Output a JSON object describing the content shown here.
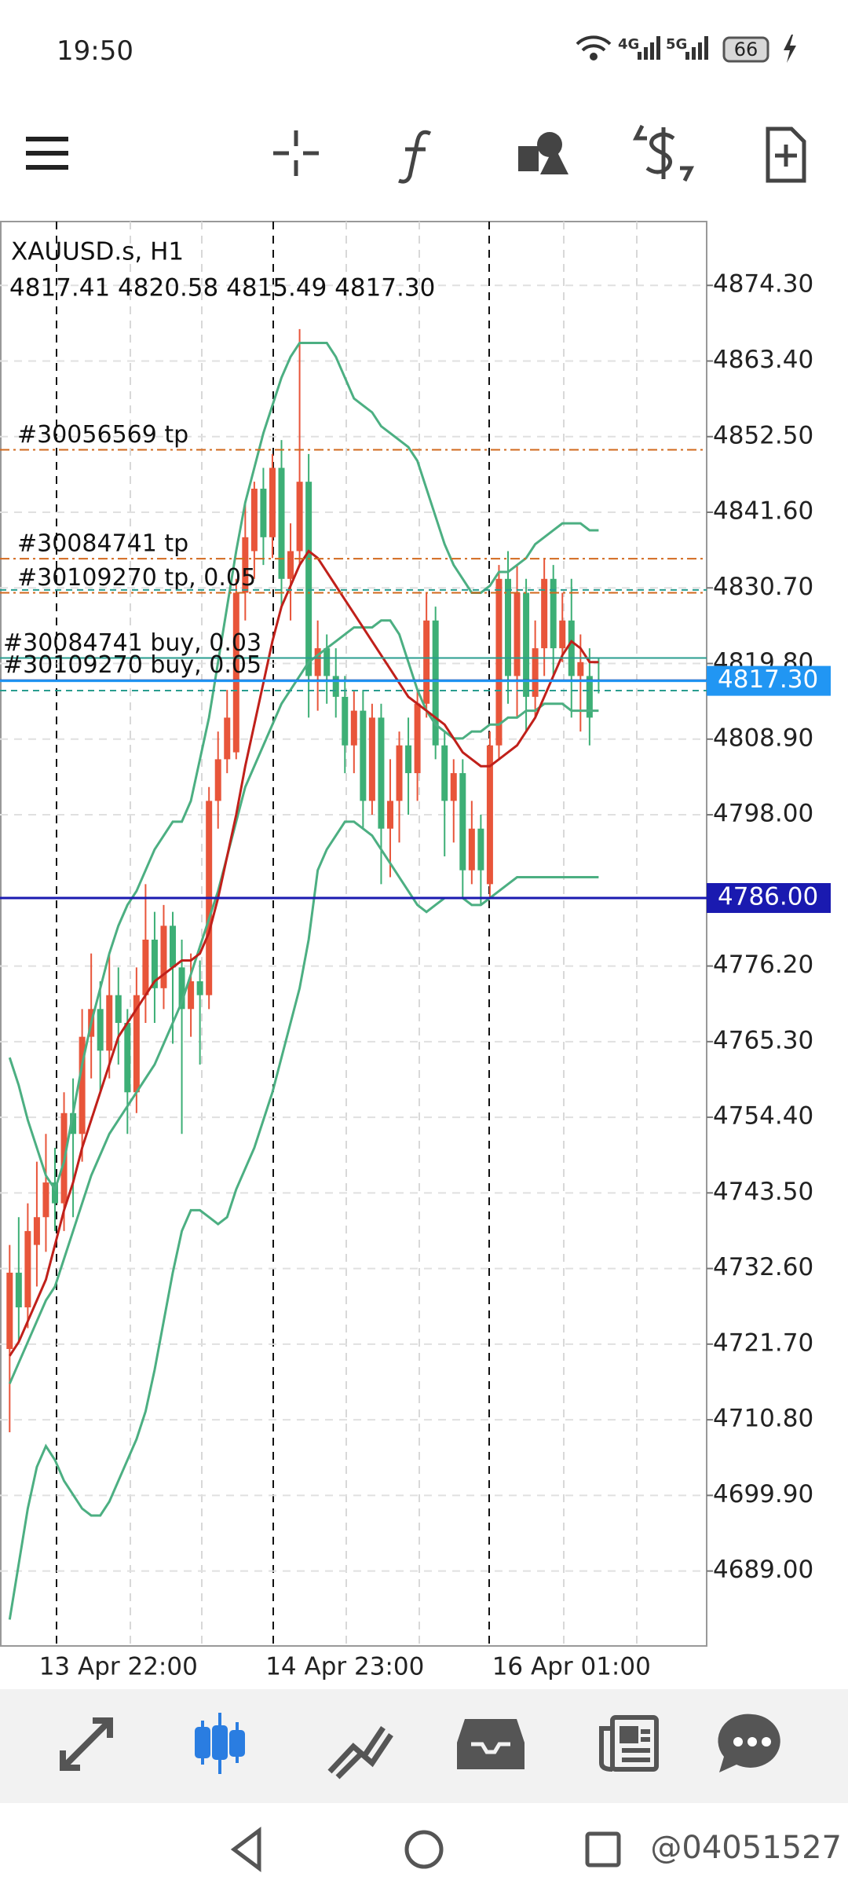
{
  "status_bar": {
    "time": "19:50",
    "net1": "4G",
    "net2": "5G",
    "battery": "66"
  },
  "chart_data": {
    "type": "candlestick",
    "symbol": "XAUUSD.s, H1",
    "ohlc_text": "4817.41 4820.58 4815.49 4817.30",
    "categories": [
      null,
      null,
      null,
      null,
      null,
      null,
      null,
      null,
      null,
      null,
      null,
      null,
      "13 Apr 22:00",
      null,
      null,
      null,
      null,
      null,
      null,
      null,
      null,
      null,
      null,
      null,
      null,
      null,
      null,
      null,
      null,
      null,
      null,
      null,
      null,
      null,
      null,
      null,
      null,
      "14 Apr 23:00",
      null,
      null,
      null,
      null,
      null,
      null,
      null,
      null,
      null,
      null,
      null,
      null,
      null,
      null,
      null,
      null,
      null,
      null,
      null,
      null,
      null,
      null,
      null,
      null,
      "16 Apr 01:00",
      null,
      null,
      null
    ],
    "open": [
      4721,
      4732,
      4727,
      4736,
      4740,
      4745,
      4742,
      4755,
      4752,
      4766,
      4770,
      4764,
      4772,
      4768,
      4758,
      4772,
      4780,
      4773,
      4782,
      4776,
      4770,
      4774,
      4772,
      4800,
      4806,
      4807,
      4830,
      4836,
      4845,
      4838,
      4848,
      4832,
      4836,
      4846,
      4818,
      4822,
      4818,
      4815,
      4808,
      4813,
      4800,
      4812,
      4796,
      4800,
      4808,
      4804,
      4814,
      4826,
      4808,
      4800,
      4804,
      4790,
      4796,
      4788,
      4808,
      4832,
      4818,
      4830,
      4815,
      4822,
      4832,
      4822,
      4826,
      4818,
      4818,
      4817.41
    ],
    "high": [
      4736,
      4740,
      4742,
      4748,
      4752,
      4750,
      4758,
      4760,
      4770,
      4778,
      4774,
      4778,
      4776,
      4770,
      4776,
      4788,
      4784,
      4785,
      4784,
      4780,
      4778,
      4777,
      4802,
      4810,
      4816,
      4832,
      4843,
      4846,
      4848,
      4850,
      4852,
      4840,
      4868,
      4850,
      4826,
      4824,
      4822,
      4818,
      4816,
      4816,
      4814,
      4814,
      4806,
      4810,
      4812,
      4816,
      4830,
      4828,
      4810,
      4806,
      4806,
      4800,
      4798,
      4810,
      4834,
      4836,
      4834,
      4832,
      4826,
      4835,
      4834,
      4830,
      4832,
      4824,
      4822,
      4820.58
    ],
    "low": [
      4709,
      4722,
      4724,
      4730,
      4735,
      4738,
      4738,
      4740,
      4748,
      4760,
      4758,
      4760,
      4762,
      4752,
      4755,
      4768,
      4768,
      4770,
      4765,
      4752,
      4766,
      4762,
      4770,
      4796,
      4804,
      4806,
      4826,
      4832,
      4834,
      4835,
      4828,
      4826,
      4834,
      4812,
      4813,
      4814,
      4812,
      4804,
      4804,
      4796,
      4798,
      4788,
      4789,
      4794,
      4798,
      4800,
      4812,
      4806,
      4792,
      4794,
      4786,
      4788,
      4785,
      4786,
      4806,
      4814,
      4812,
      4810,
      4812,
      4818,
      4818,
      4820,
      4812,
      4810,
      4808,
      4815.49
    ],
    "close": [
      4732,
      4727,
      4738,
      4740,
      4745,
      4742,
      4755,
      4752,
      4766,
      4770,
      4764,
      4772,
      4768,
      4758,
      4772,
      4780,
      4773,
      4782,
      4776,
      4770,
      4774,
      4772,
      4800,
      4806,
      4812,
      4830,
      4838,
      4845,
      4838,
      4848,
      4832,
      4836,
      4846,
      4818,
      4822,
      4818,
      4815,
      4808,
      4813,
      4800,
      4812,
      4796,
      4800,
      4808,
      4804,
      4814,
      4826,
      4808,
      4800,
      4804,
      4790,
      4796,
      4790,
      4808,
      4832,
      4818,
      4830,
      4815,
      4822,
      4832,
      4822,
      4826,
      4818,
      4820,
      4812,
      4817.3
    ],
    "up_color": "#e8553a",
    "down_color": "#3daf76",
    "indicators": [
      {
        "color": "#4caf82",
        "values": [
          4763,
          4759,
          4754,
          4750,
          4746,
          4744,
          4748,
          4755,
          4762,
          4768,
          4773,
          4778,
          4782,
          4785,
          4787,
          4790,
          4793,
          4795,
          4797,
          4797,
          4800,
          4806,
          4812,
          4820,
          4828,
          4836,
          4843,
          4848,
          4853,
          4857,
          4861,
          4864,
          4866,
          4866,
          4866,
          4866,
          4864,
          4861,
          4858,
          4857,
          4856,
          4854,
          4853,
          4852,
          4851,
          4849,
          4845,
          4841,
          4837,
          4834,
          4832,
          4830,
          4830,
          4831,
          4833,
          4833,
          4834,
          4835,
          4837,
          4838,
          4839,
          4840,
          4840,
          4840,
          4839,
          4839
        ]
      },
      {
        "color": "#4caf82",
        "values": [
          4716,
          4719,
          4722,
          4725,
          4728,
          4730,
          4734,
          4738,
          4742,
          4746,
          4749,
          4752,
          4754,
          4756,
          4758,
          4760,
          4762,
          4765,
          4768,
          4771,
          4775,
          4779,
          4783,
          4787,
          4792,
          4797,
          4802,
          4805,
          4808,
          4811,
          4814,
          4816,
          4818,
          4820,
          4821,
          4822,
          4823,
          4824,
          4825,
          4825,
          4825,
          4826,
          4826,
          4824,
          4820,
          4816,
          4813,
          4811,
          4810,
          4809,
          4809,
          4810,
          4810,
          4811,
          4811,
          4812,
          4812,
          4813,
          4813,
          4814,
          4814,
          4814,
          4813,
          4813,
          4813,
          4813
        ]
      },
      {
        "color": "#c0201a",
        "values": [
          4720,
          4722,
          4725,
          4728,
          4731,
          4736,
          4741,
          4745,
          4750,
          4754,
          4758,
          4762,
          4766,
          4768,
          4770,
          4772,
          4774,
          4775,
          4776,
          4777,
          4777,
          4778,
          4781,
          4786,
          4792,
          4798,
          4805,
          4811,
          4817,
          4823,
          4828,
          4831,
          4834,
          4836,
          4835,
          4833,
          4831,
          4829,
          4827,
          4825,
          4823,
          4821,
          4819,
          4817,
          4815,
          4814,
          4813,
          4812,
          4811,
          4809,
          4807,
          4806,
          4805,
          4805,
          4806,
          4807,
          4808,
          4810,
          4812,
          4815,
          4818,
          4821,
          4823,
          4822,
          4820,
          4820
        ]
      },
      {
        "color": "#4caf82",
        "values": [
          4682,
          4690,
          4698,
          4704,
          4707,
          4705,
          4702,
          4700,
          4698,
          4697,
          4697,
          4699,
          4702,
          4705,
          4708,
          4712,
          4718,
          4725,
          4732,
          4738,
          4741,
          4741,
          4740,
          4739,
          4740,
          4744,
          4747,
          4750,
          4754,
          4758,
          4763,
          4768,
          4773,
          4780,
          4790,
          4793,
          4795,
          4797,
          4797,
          4796,
          4795,
          4793,
          4791,
          4789,
          4787,
          4785,
          4784,
          4785,
          4786,
          4786,
          4786,
          4785,
          4785,
          4786,
          4787,
          4788,
          4789,
          4789,
          4789,
          4789,
          4789,
          4789,
          4789,
          4789,
          4789,
          4789
        ]
      }
    ],
    "ylim": [
      4678.2,
      4883.5
    ],
    "yticks": [
      {
        "value": 4874.3,
        "label": "4874.30"
      },
      {
        "value": 4863.4,
        "label": "4863.40"
      },
      {
        "value": 4852.5,
        "label": "4852.50"
      },
      {
        "value": 4841.6,
        "label": "4841.60"
      },
      {
        "value": 4830.7,
        "label": "4830.70"
      },
      {
        "value": 4819.8,
        "label": "4819.80"
      },
      {
        "value": 4808.9,
        "label": "4808.90"
      },
      {
        "value": 4798,
        "label": "4798.00"
      },
      {
        "value": 4776.2,
        "label": "4776.20"
      },
      {
        "value": 4765.3,
        "label": "4765.30"
      },
      {
        "value": 4754.4,
        "label": "4754.40"
      },
      {
        "value": 4743.5,
        "label": "4743.50"
      },
      {
        "value": 4732.6,
        "label": "4732.60"
      },
      {
        "value": 4721.7,
        "label": "4721.70"
      },
      {
        "value": 4710.8,
        "label": "4710.80"
      },
      {
        "value": 4699.9,
        "label": "4699.90"
      },
      {
        "value": 4689,
        "label": "4689.00"
      }
    ],
    "grid": true,
    "levels": [
      {
        "value": 4850.6,
        "label": "#30056569 tp",
        "color": "#d2691e",
        "style": "dash-dot"
      },
      {
        "value": 4834.9,
        "label": "#30084741 tp",
        "color": "#d2691e",
        "style": "dash-dot"
      },
      {
        "value": 4830.0,
        "label": "#30109270 tp, 0.05",
        "color": "#d2691e",
        "style": "dash-dot"
      },
      {
        "value": 4830.4,
        "color": "#2a9d8f",
        "style": "dash"
      },
      {
        "value": 4820.6,
        "label": "#30084741 buy, 0.03",
        "color": "#2a9d8f",
        "style": "solid"
      },
      {
        "value": 4817.4,
        "label": "#30109270 buy, 0.05",
        "color": "#1e2a8c",
        "style": "solid"
      },
      {
        "value": 4815.9,
        "color": "#2a9d8f",
        "style": "dash"
      }
    ],
    "price_tags": [
      {
        "value": 4817.3,
        "label": "4817.30",
        "color": "#2196f3"
      },
      {
        "value": 4786,
        "label": "4786.00",
        "color": "#1a1ab0"
      }
    ]
  },
  "watermark": "@04051527"
}
